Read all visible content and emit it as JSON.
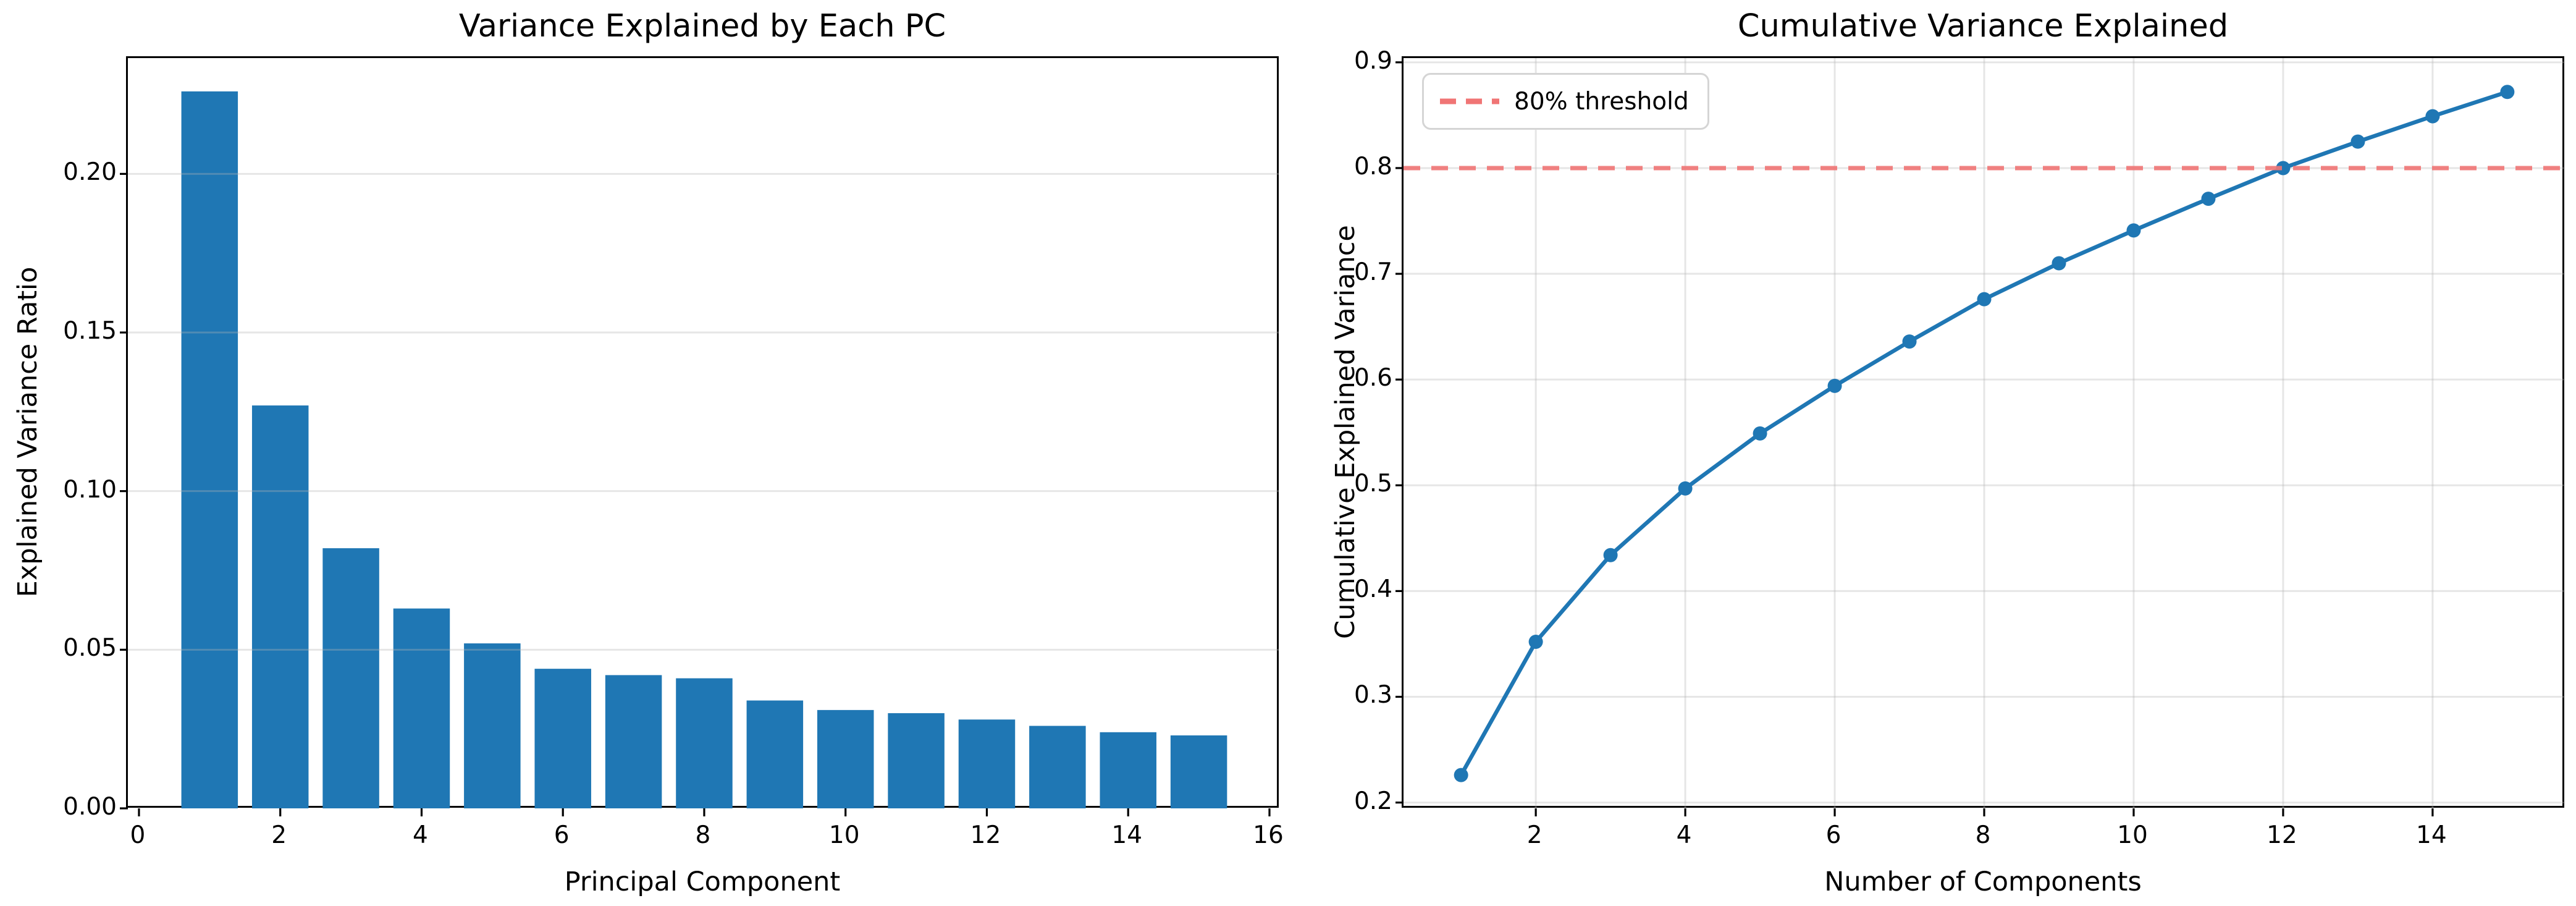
{
  "figure": {
    "background": "#ffffff"
  },
  "colors": {
    "bar_blue": "#1f77b4",
    "line_blue": "#1f77b4",
    "threshold_red": "#f07575",
    "grid_gray": "#b4b4b4",
    "spine_black": "#000000",
    "legend_border": "#d5d5d5"
  },
  "chart_data": [
    {
      "type": "bar",
      "title": "Variance Explained by Each PC",
      "xlabel": "Principal Component",
      "ylabel": "Explained Variance Ratio",
      "x": [
        1,
        2,
        3,
        4,
        5,
        6,
        7,
        8,
        9,
        10,
        11,
        12,
        13,
        14,
        15
      ],
      "values": [
        0.226,
        0.127,
        0.082,
        0.063,
        0.052,
        0.044,
        0.042,
        0.041,
        0.034,
        0.031,
        0.03,
        0.028,
        0.026,
        0.024,
        0.023
      ],
      "bar_width": 0.8,
      "xticks": [
        0,
        2,
        4,
        6,
        8,
        10,
        12,
        14,
        16
      ],
      "xtick_labels": [
        "0",
        "2",
        "4",
        "6",
        "8",
        "10",
        "12",
        "14",
        "16"
      ],
      "ytick_values": [
        0.0,
        0.05,
        0.1,
        0.15,
        0.2
      ],
      "ytick_labels": [
        "0.00",
        "0.05",
        "0.10",
        "0.15",
        "0.20"
      ],
      "xlim": [
        -0.157,
        16.14
      ],
      "ylim": [
        0,
        0.2365
      ],
      "grid": "horizontal",
      "legend": null
    },
    {
      "type": "line",
      "title": "Cumulative Variance Explained",
      "xlabel": "Number of Components",
      "ylabel": "Cumulative Explained Variance",
      "x": [
        1,
        2,
        3,
        4,
        5,
        6,
        7,
        8,
        9,
        10,
        11,
        12,
        13,
        14,
        15
      ],
      "values": [
        0.226,
        0.352,
        0.434,
        0.497,
        0.549,
        0.594,
        0.636,
        0.676,
        0.71,
        0.741,
        0.771,
        0.8,
        0.825,
        0.849,
        0.872
      ],
      "marker": "circle",
      "xticks": [
        2,
        4,
        6,
        8,
        10,
        12,
        14
      ],
      "xtick_labels": [
        "2",
        "4",
        "6",
        "8",
        "10",
        "12",
        "14"
      ],
      "ytick_values": [
        0.2,
        0.3,
        0.4,
        0.5,
        0.6,
        0.7,
        0.8,
        0.9
      ],
      "ytick_labels": [
        "0.2",
        "0.3",
        "0.4",
        "0.5",
        "0.6",
        "0.7",
        "0.8",
        "0.9"
      ],
      "xlim": [
        0.23,
        15.77
      ],
      "ylim": [
        0.1945,
        0.904
      ],
      "grid": "both",
      "threshold": {
        "value": 0.8,
        "style": "dashed",
        "legend_label": "80% threshold",
        "legend_position": "upper-left"
      }
    }
  ]
}
